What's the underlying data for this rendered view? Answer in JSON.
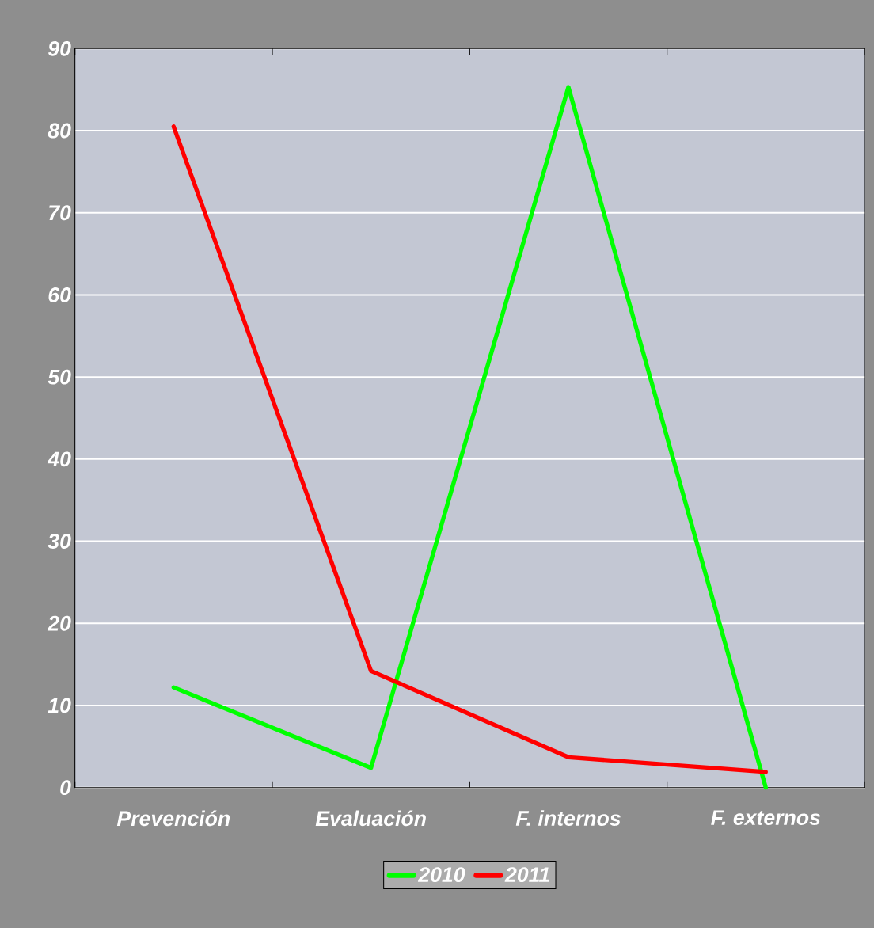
{
  "chart_data": {
    "type": "line",
    "categories": [
      "Prevención",
      "Evaluación",
      "F. internos",
      "F. externos"
    ],
    "series": [
      {
        "name": "2010",
        "color": "#00ff00",
        "values": [
          12.2,
          2.4,
          85.3,
          0
        ]
      },
      {
        "name": "2011",
        "color": "#ff0000",
        "values": [
          80.5,
          14.2,
          3.7,
          1.9
        ]
      }
    ],
    "ylim": [
      0,
      90
    ],
    "yticks": [
      0,
      10,
      20,
      30,
      40,
      50,
      60,
      70,
      80,
      90
    ],
    "grid": "y",
    "legend": "bottom",
    "marker": "none",
    "line_style": "solid"
  }
}
